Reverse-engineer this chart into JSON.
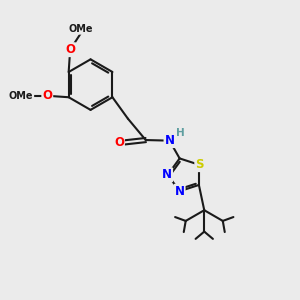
{
  "bg_color": "#ebebeb",
  "bond_color": "#1a1a1a",
  "atom_colors": {
    "O": "#ff0000",
    "N": "#0000ff",
    "S": "#cccc00",
    "H": "#5f9ea0",
    "C": "#1a1a1a"
  },
  "font_size": 8.5,
  "fig_size": [
    3.0,
    3.0
  ],
  "dpi": 100
}
